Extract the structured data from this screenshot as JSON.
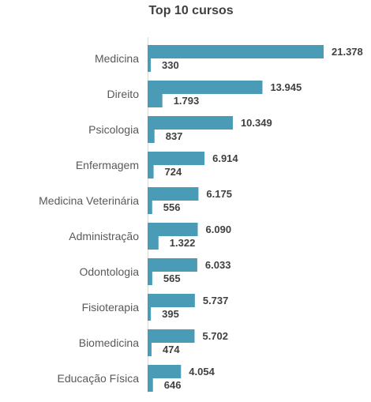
{
  "chart_data": {
    "type": "bar",
    "orientation": "horizontal",
    "title": "Top 10 cursos",
    "categories": [
      "Medicina",
      "Direito",
      "Psicologia",
      "Enfermagem",
      "Medicina Veterinária",
      "Administração",
      "Odontologia",
      "Fisioterapia",
      "Biomedicina",
      "Educação Física"
    ],
    "series": [
      {
        "values": [
          21378,
          13945,
          10349,
          6914,
          6175,
          6090,
          6033,
          5737,
          5702,
          4054
        ],
        "labels": [
          "21.378",
          "13.945",
          "10.349",
          "6.914",
          "6.175",
          "6.090",
          "6.033",
          "5.737",
          "5.702",
          "4.054"
        ],
        "color": "#4A9BB5"
      },
      {
        "values": [
          330,
          1793,
          837,
          724,
          556,
          1322,
          565,
          395,
          474,
          646
        ],
        "labels": [
          "330",
          "1.793",
          "837",
          "724",
          "556",
          "1.322",
          "565",
          "395",
          "474",
          "646"
        ],
        "color": "#4A9BB5"
      }
    ],
    "xlim": [
      0,
      21378
    ],
    "grid": false,
    "legend": "none"
  }
}
